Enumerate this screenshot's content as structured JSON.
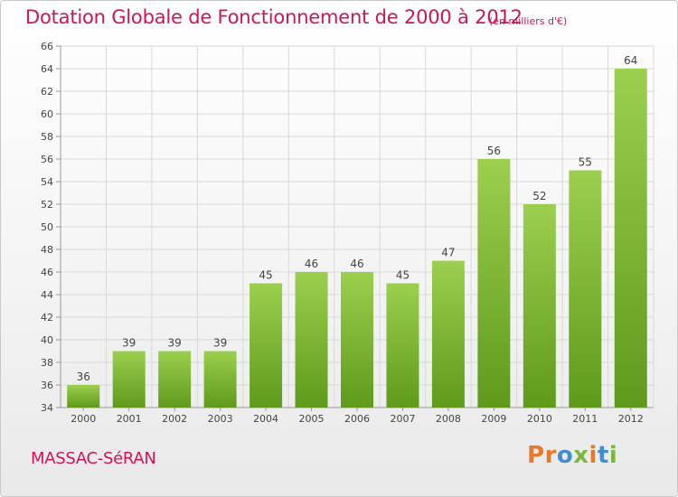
{
  "header": {
    "title": "Dotation Globale de Fonctionnement de 2000 à 2012",
    "unit": "(en milliers d'€)"
  },
  "footer": {
    "commune": "MASSAC-SéRAN",
    "brand": "Proxiti",
    "brand_colors": [
      "#e8782a",
      "#e8782a",
      "#3d8fd0",
      "#7ab83a",
      "#e8782a",
      "#3d8fd0",
      "#7ab83a"
    ]
  },
  "chart_data": {
    "type": "bar",
    "title": "Dotation Globale de Fonctionnement de 2000 à 2012",
    "subtitle": "(en milliers d'€)",
    "categories": [
      "2000",
      "2001",
      "2002",
      "2003",
      "2004",
      "2005",
      "2006",
      "2007",
      "2008",
      "2009",
      "2010",
      "2011",
      "2012"
    ],
    "values": [
      36,
      39,
      39,
      39,
      45,
      46,
      46,
      45,
      47,
      56,
      52,
      55,
      64
    ],
    "data_labels": [
      "36",
      "39",
      "39",
      "39",
      "45",
      "46",
      "46",
      "45",
      "47",
      "56",
      "52",
      "55",
      "64"
    ],
    "ylim": [
      34,
      66
    ],
    "yticks": [
      "34",
      "36",
      "38",
      "40",
      "42",
      "44",
      "46",
      "48",
      "50",
      "52",
      "54",
      "56",
      "58",
      "60",
      "62",
      "64",
      "66"
    ],
    "xlabel": "",
    "ylabel": "",
    "grid": true,
    "legend": "none",
    "colors": {
      "bar_light": "#9ccf4e",
      "bar_dark": "#5f9a1c",
      "grid": "#d9d9d9",
      "text": "#444444"
    }
  }
}
